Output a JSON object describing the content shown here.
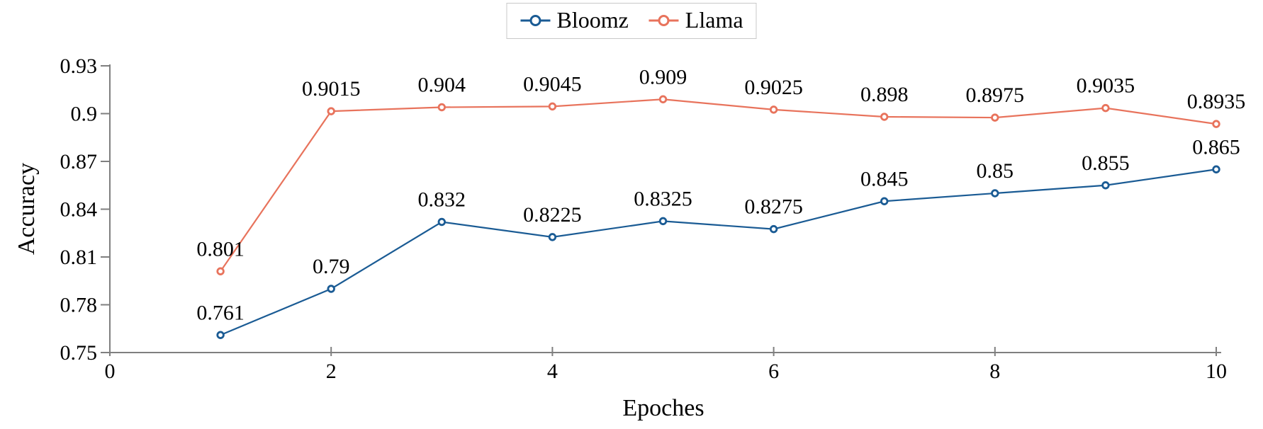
{
  "chart_data": {
    "type": "line",
    "title": "",
    "xlabel": "Epoches",
    "ylabel": "Accuracy",
    "x": [
      1,
      2,
      3,
      4,
      5,
      6,
      7,
      8,
      9,
      10
    ],
    "series": [
      {
        "name": "Bloomz",
        "color": "#1a5b94",
        "values": [
          0.761,
          0.79,
          0.832,
          0.8225,
          0.8325,
          0.8275,
          0.845,
          0.85,
          0.855,
          0.865
        ],
        "point_labels": [
          "0.761",
          "0.79",
          "0.832",
          "0.8225",
          "0.8325",
          "0.8275",
          "0.845",
          "0.85",
          "0.855",
          "0.865"
        ]
      },
      {
        "name": "Llama",
        "color": "#e8735c",
        "values": [
          0.801,
          0.9015,
          0.904,
          0.9045,
          0.909,
          0.9025,
          0.898,
          0.8975,
          0.9035,
          0.8935
        ],
        "point_labels": [
          "0.801",
          "0.9015",
          "0.904",
          "0.9045",
          "0.909",
          "0.9025",
          "0.898",
          "0.8975",
          "0.9035",
          "0.8935"
        ]
      }
    ],
    "xlim": [
      0,
      10
    ],
    "ylim": [
      0.75,
      0.93
    ],
    "xticks": {
      "values": [
        0,
        2,
        4,
        6,
        8,
        10
      ],
      "labels": [
        "0",
        "2",
        "4",
        "6",
        "8",
        "10"
      ]
    },
    "yticks": {
      "values": [
        0.75,
        0.78,
        0.81,
        0.84,
        0.87,
        0.9,
        0.93
      ],
      "labels": [
        "0.75",
        "0.78",
        "0.81",
        "0.84",
        "0.87",
        "0.9",
        "0.93"
      ]
    },
    "grid": false,
    "legend_position": "top-center",
    "marker": "open-circle"
  },
  "colors": {
    "axis": "#7f7f7f",
    "text": "#000000",
    "legend_border": "#c9c9c9",
    "background": "#ffffff"
  }
}
